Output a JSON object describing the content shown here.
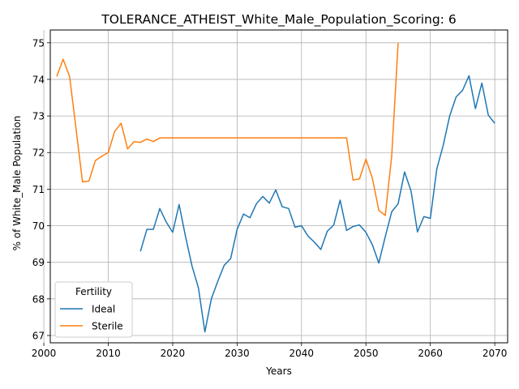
{
  "chart_data": {
    "type": "line",
    "title": "TOLERANCE_ATHEIST_White_Male_Population_Scoring: 6",
    "xlabel": "Years",
    "ylabel": "% of White_Male Population",
    "xlim": [
      2001,
      2072
    ],
    "ylim": [
      66.8,
      75.35
    ],
    "xticks": [
      2000,
      2010,
      2020,
      2030,
      2040,
      2050,
      2060,
      2070
    ],
    "yticks": [
      67,
      68,
      69,
      70,
      71,
      72,
      73,
      74,
      75
    ],
    "grid": true,
    "legend": {
      "title": "Fertility",
      "placement": "lower-left"
    },
    "series": [
      {
        "name": "Ideal",
        "color": "#1f77b4",
        "x": [
          2015,
          2016,
          2017,
          2018,
          2019,
          2020,
          2021,
          2022,
          2023,
          2024,
          2025,
          2026,
          2027,
          2028,
          2029,
          2030,
          2031,
          2032,
          2033,
          2034,
          2035,
          2036,
          2037,
          2038,
          2039,
          2040,
          2041,
          2042,
          2043,
          2044,
          2045,
          2046,
          2047,
          2048,
          2049,
          2050,
          2051,
          2052,
          2053,
          2054,
          2055,
          2056,
          2057,
          2058,
          2059,
          2060,
          2061,
          2062,
          2063,
          2064,
          2065,
          2066,
          2067,
          2068,
          2069,
          2070
        ],
        "y": [
          69.3,
          69.9,
          69.9,
          70.47,
          70.1,
          69.82,
          70.58,
          69.7,
          68.9,
          68.3,
          67.1,
          68.0,
          68.48,
          68.92,
          69.1,
          69.9,
          70.32,
          70.22,
          70.6,
          70.8,
          70.62,
          70.98,
          70.52,
          70.47,
          69.96,
          70.0,
          69.72,
          69.55,
          69.35,
          69.85,
          70.02,
          70.7,
          69.87,
          69.98,
          70.02,
          69.82,
          69.48,
          68.98,
          69.7,
          70.38,
          70.6,
          71.47,
          70.95,
          69.83,
          70.25,
          70.2,
          71.55,
          72.2,
          73.0,
          73.52,
          73.7,
          74.1,
          73.2,
          73.9,
          73.02,
          72.8
        ]
      },
      {
        "name": "Sterile",
        "color": "#ff7f0e",
        "x": [
          2002,
          2003,
          2004,
          2005,
          2006,
          2007,
          2008,
          2009,
          2010,
          2011,
          2012,
          2013,
          2014,
          2015,
          2016,
          2017,
          2018,
          2019,
          2020,
          2021,
          2022,
          2023,
          2024,
          2025,
          2026,
          2027,
          2028,
          2029,
          2030,
          2031,
          2032,
          2033,
          2034,
          2035,
          2036,
          2037,
          2038,
          2039,
          2040,
          2041,
          2042,
          2043,
          2044,
          2045,
          2046,
          2047,
          2048,
          2049,
          2050,
          2051,
          2052,
          2053,
          2054,
          2055
        ],
        "y": [
          74.08,
          74.55,
          74.08,
          72.65,
          71.2,
          71.22,
          71.78,
          71.9,
          72.0,
          72.58,
          72.8,
          72.1,
          72.3,
          72.28,
          72.37,
          72.3,
          72.4,
          72.4,
          72.4,
          72.4,
          72.4,
          72.4,
          72.4,
          72.4,
          72.4,
          72.4,
          72.4,
          72.4,
          72.4,
          72.4,
          72.4,
          72.4,
          72.4,
          72.4,
          72.4,
          72.4,
          72.4,
          72.4,
          72.4,
          72.4,
          72.4,
          72.4,
          72.4,
          72.4,
          72.4,
          72.4,
          71.25,
          71.28,
          71.82,
          71.3,
          70.42,
          70.28,
          71.9,
          75.0
        ]
      }
    ]
  }
}
